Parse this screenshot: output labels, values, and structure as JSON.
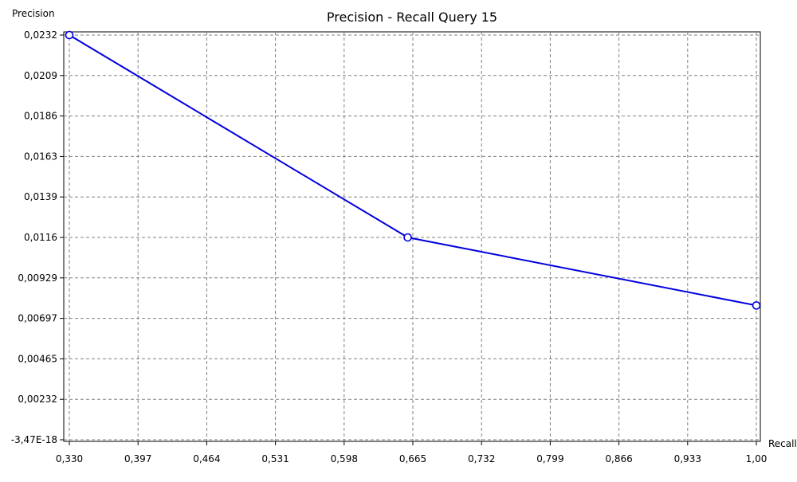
{
  "chart_data": {
    "type": "line",
    "title": "Precision - Recall Query 15",
    "xlabel": "Recall",
    "ylabel": "Precision",
    "x_ticks": [
      "0,330",
      "0,397",
      "0,464",
      "0,531",
      "0,598",
      "0,665",
      "0,732",
      "0,799",
      "0,866",
      "0,933",
      "1,00"
    ],
    "y_ticks": [
      "-3,47E-18",
      "0,00232",
      "0,00465",
      "0,00697",
      "0,00929",
      "0,0116",
      "0,0139",
      "0,0163",
      "0,0186",
      "0,0209",
      "0,0232"
    ],
    "xlim": [
      0.33,
      1.0
    ],
    "ylim": [
      0,
      0.0232
    ],
    "grid": true,
    "series": [
      {
        "x": [
          0.33,
          0.66,
          1.0
        ],
        "y": [
          0.0232,
          0.0116,
          0.0077
        ],
        "color": "#0000dd",
        "marker": "circle-open"
      }
    ]
  },
  "colors": {
    "line": "#0000dd",
    "grid": "#808080",
    "axis": "#000000",
    "background": "#ffffff"
  }
}
